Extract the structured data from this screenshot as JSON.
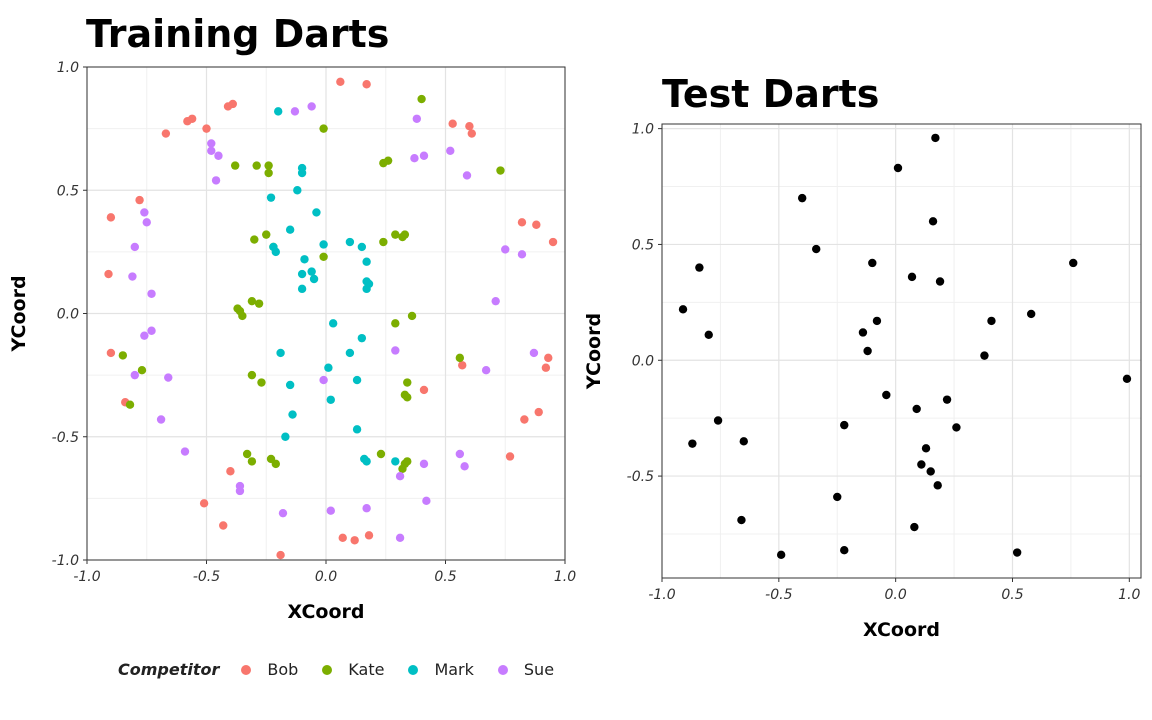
{
  "chart_data": [
    {
      "type": "scatter",
      "title": "Training Darts",
      "xlabel": "XCoord",
      "ylabel": "YCoord",
      "xlim": [
        -1.0,
        1.0
      ],
      "ylim": [
        -1.0,
        1.0
      ],
      "x_ticks": [
        "-1.0",
        "-0.5",
        "0.0",
        "0.5",
        "1.0"
      ],
      "y_ticks": [
        "-1.0",
        "-0.5",
        "0.0",
        "0.5",
        "1.0"
      ],
      "grid": true,
      "legend": {
        "title": "Competitor",
        "placement": "bottom"
      },
      "series": [
        {
          "name": "Bob",
          "color": "#F8766D",
          "points": [
            [
              0.06,
              0.94
            ],
            [
              0.17,
              0.93
            ],
            [
              -0.39,
              0.85
            ],
            [
              -0.41,
              0.84
            ],
            [
              -0.56,
              0.79
            ],
            [
              -0.58,
              0.78
            ],
            [
              -0.5,
              0.75
            ],
            [
              -0.67,
              0.73
            ],
            [
              0.53,
              0.77
            ],
            [
              0.6,
              0.76
            ],
            [
              0.61,
              0.73
            ],
            [
              -0.9,
              0.39
            ],
            [
              -0.78,
              0.46
            ],
            [
              0.82,
              0.37
            ],
            [
              0.88,
              0.36
            ],
            [
              0.95,
              0.29
            ],
            [
              -0.91,
              0.16
            ],
            [
              -0.9,
              -0.16
            ],
            [
              0.93,
              -0.18
            ],
            [
              0.92,
              -0.22
            ],
            [
              0.57,
              -0.21
            ],
            [
              0.41,
              -0.31
            ],
            [
              -0.84,
              -0.36
            ],
            [
              0.83,
              -0.43
            ],
            [
              0.89,
              -0.4
            ],
            [
              0.77,
              -0.58
            ],
            [
              -0.4,
              -0.64
            ],
            [
              -0.51,
              -0.77
            ],
            [
              -0.43,
              -0.86
            ],
            [
              -0.19,
              -0.98
            ],
            [
              0.07,
              -0.91
            ],
            [
              0.12,
              -0.92
            ],
            [
              0.18,
              -0.9
            ]
          ]
        },
        {
          "name": "Kate",
          "color": "#7CAE00",
          "points": [
            [
              0.4,
              0.87
            ],
            [
              -0.01,
              0.75
            ],
            [
              -0.38,
              0.6
            ],
            [
              -0.29,
              0.6
            ],
            [
              -0.24,
              0.6
            ],
            [
              -0.24,
              0.57
            ],
            [
              0.24,
              0.61
            ],
            [
              0.26,
              0.62
            ],
            [
              0.73,
              0.58
            ],
            [
              -0.3,
              0.3
            ],
            [
              -0.25,
              0.32
            ],
            [
              -0.22,
              0.27
            ],
            [
              0.24,
              0.29
            ],
            [
              0.29,
              0.32
            ],
            [
              0.32,
              0.31
            ],
            [
              0.33,
              0.32
            ],
            [
              -0.01,
              0.23
            ],
            [
              -0.36,
              0.01
            ],
            [
              -0.37,
              0.02
            ],
            [
              -0.35,
              -0.01
            ],
            [
              -0.31,
              0.05
            ],
            [
              -0.28,
              0.04
            ],
            [
              0.29,
              -0.04
            ],
            [
              0.36,
              -0.01
            ],
            [
              -0.85,
              -0.17
            ],
            [
              0.56,
              -0.18
            ],
            [
              -0.77,
              -0.23
            ],
            [
              -0.31,
              -0.25
            ],
            [
              -0.27,
              -0.28
            ],
            [
              0.34,
              -0.28
            ],
            [
              0.33,
              -0.33
            ],
            [
              0.34,
              -0.34
            ],
            [
              -0.82,
              -0.37
            ],
            [
              -0.33,
              -0.57
            ],
            [
              -0.31,
              -0.6
            ],
            [
              -0.23,
              -0.59
            ],
            [
              -0.21,
              -0.61
            ],
            [
              0.23,
              -0.57
            ],
            [
              0.33,
              -0.61
            ],
            [
              0.34,
              -0.6
            ],
            [
              0.32,
              -0.63
            ]
          ]
        },
        {
          "name": "Mark",
          "color": "#00BFC4",
          "points": [
            [
              -0.2,
              0.82
            ],
            [
              -0.1,
              0.59
            ],
            [
              -0.1,
              0.57
            ],
            [
              -0.12,
              0.5
            ],
            [
              -0.23,
              0.47
            ],
            [
              -0.04,
              0.41
            ],
            [
              -0.15,
              0.34
            ],
            [
              -0.21,
              0.25
            ],
            [
              -0.22,
              0.27
            ],
            [
              -0.01,
              0.28
            ],
            [
              0.1,
              0.29
            ],
            [
              0.15,
              0.27
            ],
            [
              -0.09,
              0.22
            ],
            [
              -0.06,
              0.17
            ],
            [
              -0.05,
              0.14
            ],
            [
              -0.1,
              0.16
            ],
            [
              -0.1,
              0.1
            ],
            [
              0.17,
              0.21
            ],
            [
              0.17,
              0.13
            ],
            [
              0.18,
              0.12
            ],
            [
              0.17,
              0.1
            ],
            [
              0.03,
              -0.04
            ],
            [
              0.15,
              -0.1
            ],
            [
              -0.19,
              -0.16
            ],
            [
              0.1,
              -0.16
            ],
            [
              0.01,
              -0.22
            ],
            [
              0.13,
              -0.27
            ],
            [
              -0.15,
              -0.29
            ],
            [
              0.02,
              -0.35
            ],
            [
              -0.14,
              -0.41
            ],
            [
              0.13,
              -0.47
            ],
            [
              -0.17,
              -0.5
            ],
            [
              0.16,
              -0.59
            ],
            [
              0.17,
              -0.6
            ],
            [
              0.29,
              -0.6
            ]
          ]
        },
        {
          "name": "Sue",
          "color": "#C77CFF",
          "points": [
            [
              -0.06,
              0.84
            ],
            [
              -0.13,
              0.82
            ],
            [
              0.38,
              0.79
            ],
            [
              -0.48,
              0.69
            ],
            [
              -0.48,
              0.66
            ],
            [
              -0.45,
              0.64
            ],
            [
              0.37,
              0.63
            ],
            [
              0.41,
              0.64
            ],
            [
              0.52,
              0.66
            ],
            [
              -0.46,
              0.54
            ],
            [
              0.59,
              0.56
            ],
            [
              -0.76,
              0.41
            ],
            [
              -0.75,
              0.37
            ],
            [
              -0.8,
              0.27
            ],
            [
              0.75,
              0.26
            ],
            [
              0.82,
              0.24
            ],
            [
              -0.81,
              0.15
            ],
            [
              -0.73,
              0.08
            ],
            [
              0.71,
              0.05
            ],
            [
              -0.73,
              -0.07
            ],
            [
              -0.76,
              -0.09
            ],
            [
              0.29,
              -0.15
            ],
            [
              0.87,
              -0.16
            ],
            [
              -0.8,
              -0.25
            ],
            [
              -0.66,
              -0.26
            ],
            [
              0.67,
              -0.23
            ],
            [
              -0.01,
              -0.27
            ],
            [
              -0.69,
              -0.43
            ],
            [
              0.56,
              -0.57
            ],
            [
              0.58,
              -0.62
            ],
            [
              -0.59,
              -0.56
            ],
            [
              0.41,
              -0.61
            ],
            [
              0.31,
              -0.66
            ],
            [
              -0.36,
              -0.7
            ],
            [
              -0.36,
              -0.72
            ],
            [
              0.42,
              -0.76
            ],
            [
              0.02,
              -0.8
            ],
            [
              0.17,
              -0.79
            ],
            [
              -0.18,
              -0.81
            ],
            [
              0.31,
              -0.91
            ]
          ]
        }
      ]
    },
    {
      "type": "scatter",
      "title": "Test Darts",
      "xlabel": "XCoord",
      "ylabel": "YCoord",
      "xlim": [
        -1.0,
        1.05
      ],
      "ylim": [
        -0.94,
        1.02
      ],
      "x_ticks": [
        "-1.0",
        "-0.5",
        "0.0",
        "0.5",
        "1.0"
      ],
      "y_ticks": [
        "-0.5",
        "0.0",
        "0.5",
        "1.0"
      ],
      "grid": true,
      "series": [
        {
          "color": "#000000",
          "points": [
            [
              0.17,
              0.96
            ],
            [
              0.01,
              0.83
            ],
            [
              -0.4,
              0.7
            ],
            [
              0.16,
              0.6
            ],
            [
              -0.34,
              0.48
            ],
            [
              -0.1,
              0.42
            ],
            [
              0.07,
              0.36
            ],
            [
              0.19,
              0.34
            ],
            [
              0.76,
              0.42
            ],
            [
              -0.84,
              0.4
            ],
            [
              -0.91,
              0.22
            ],
            [
              0.58,
              0.2
            ],
            [
              0.41,
              0.17
            ],
            [
              -0.08,
              0.17
            ],
            [
              -0.14,
              0.12
            ],
            [
              -0.8,
              0.11
            ],
            [
              -0.12,
              0.04
            ],
            [
              0.38,
              0.02
            ],
            [
              0.99,
              -0.08
            ],
            [
              -0.04,
              -0.15
            ],
            [
              0.22,
              -0.17
            ],
            [
              0.09,
              -0.21
            ],
            [
              -0.76,
              -0.26
            ],
            [
              -0.22,
              -0.28
            ],
            [
              0.26,
              -0.29
            ],
            [
              -0.65,
              -0.35
            ],
            [
              -0.87,
              -0.36
            ],
            [
              0.13,
              -0.38
            ],
            [
              0.11,
              -0.45
            ],
            [
              0.15,
              -0.48
            ],
            [
              0.18,
              -0.54
            ],
            [
              -0.25,
              -0.59
            ],
            [
              -0.66,
              -0.69
            ],
            [
              0.08,
              -0.72
            ],
            [
              -0.22,
              -0.82
            ],
            [
              0.52,
              -0.83
            ],
            [
              -0.49,
              -0.84
            ]
          ]
        }
      ]
    }
  ]
}
